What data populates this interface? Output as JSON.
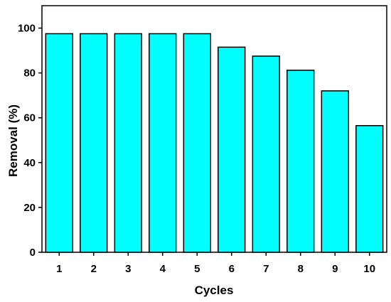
{
  "chart_data": {
    "type": "bar",
    "title": "",
    "xlabel": "Cycles",
    "ylabel": "Removal (%)",
    "categories": [
      "1",
      "2",
      "3",
      "4",
      "5",
      "6",
      "7",
      "8",
      "9",
      "10"
    ],
    "values": [
      97.5,
      97.5,
      97.5,
      97.5,
      97.5,
      91.5,
      87.5,
      81.2,
      72.0,
      56.5
    ],
    "ylim": [
      0,
      110
    ],
    "yticks": [
      "0",
      "20",
      "40",
      "60",
      "80",
      "100"
    ],
    "grid": false,
    "legend": "none",
    "bar_color": "#00FFFF",
    "bar_edge_color": "#000000"
  }
}
